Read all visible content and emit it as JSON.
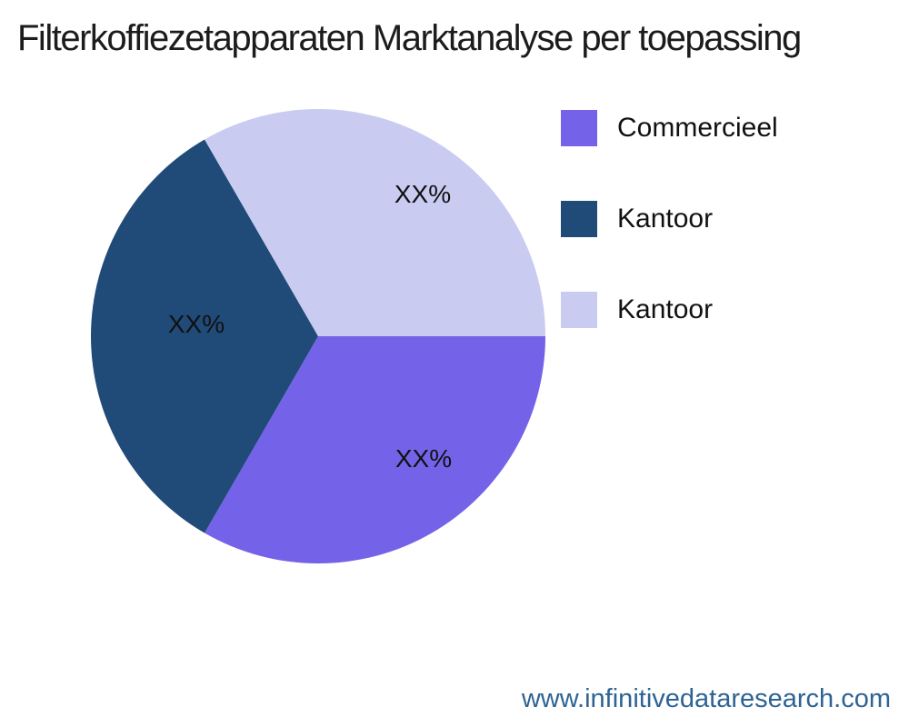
{
  "chart_data": {
    "type": "pie",
    "title": "Filterkoffiezetapparaten Marktanalyse per toepassing",
    "start_angle_deg": 0,
    "direction": "clockwise",
    "legend_position": "right",
    "slices": [
      {
        "label": "Commercieel",
        "value": 33.33,
        "display_pct": "XX%",
        "color": "#7463E9"
      },
      {
        "label": "Kantoor",
        "value": 33.34,
        "display_pct": "XX%",
        "color": "#204A78"
      },
      {
        "label": "Kantoor",
        "value": 33.33,
        "display_pct": "XX%",
        "color": "#C9CCF0"
      }
    ],
    "label_color": "#111111"
  },
  "footer": {
    "website": "www.infinitivedataresearch.com",
    "color": "#2E6394"
  }
}
